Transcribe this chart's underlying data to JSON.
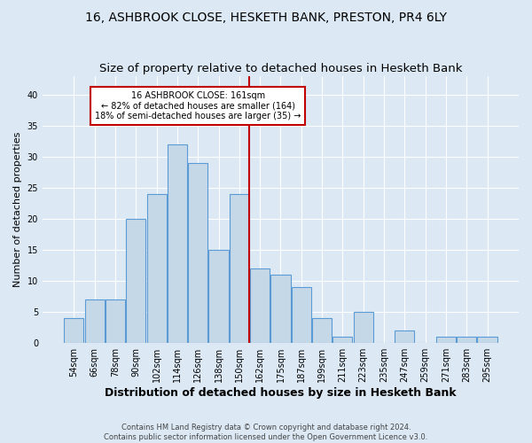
{
  "title1": "16, ASHBROOK CLOSE, HESKETH BANK, PRESTON, PR4 6LY",
  "title2": "Size of property relative to detached houses in Hesketh Bank",
  "xlabel": "Distribution of detached houses by size in Hesketh Bank",
  "ylabel": "Number of detached properties",
  "footnote1": "Contains HM Land Registry data © Crown copyright and database right 2024.",
  "footnote2": "Contains public sector information licensed under the Open Government Licence v3.0.",
  "categories": [
    "54sqm",
    "66sqm",
    "78sqm",
    "90sqm",
    "102sqm",
    "114sqm",
    "126sqm",
    "138sqm",
    "150sqm",
    "162sqm",
    "175sqm",
    "187sqm",
    "199sqm",
    "211sqm",
    "223sqm",
    "235sqm",
    "247sqm",
    "259sqm",
    "271sqm",
    "283sqm",
    "295sqm"
  ],
  "values": [
    4,
    7,
    7,
    20,
    24,
    32,
    29,
    15,
    24,
    12,
    11,
    9,
    4,
    1,
    5,
    0,
    2,
    0,
    1,
    1,
    1
  ],
  "bar_color": "#c5d8e8",
  "bar_edge_color": "#5b9bd5",
  "vline_x": 9.0,
  "vline_color": "#c00000",
  "annotation_title": "16 ASHBROOK CLOSE: 161sqm",
  "annotation_line1": "← 82% of detached houses are smaller (164)",
  "annotation_line2": "18% of semi-detached houses are larger (35) →",
  "annotation_box_edgecolor": "#c00000",
  "annotation_bg": "#ffffff",
  "ylim": [
    0,
    43
  ],
  "yticks": [
    0,
    5,
    10,
    15,
    20,
    25,
    30,
    35,
    40
  ],
  "bg_color": "#dce9f5",
  "grid_color": "#ffffff",
  "title1_fontsize": 10,
  "title2_fontsize": 9.5,
  "xlabel_fontsize": 9,
  "ylabel_fontsize": 8,
  "tick_fontsize": 7,
  "footnote_fontsize": 6
}
